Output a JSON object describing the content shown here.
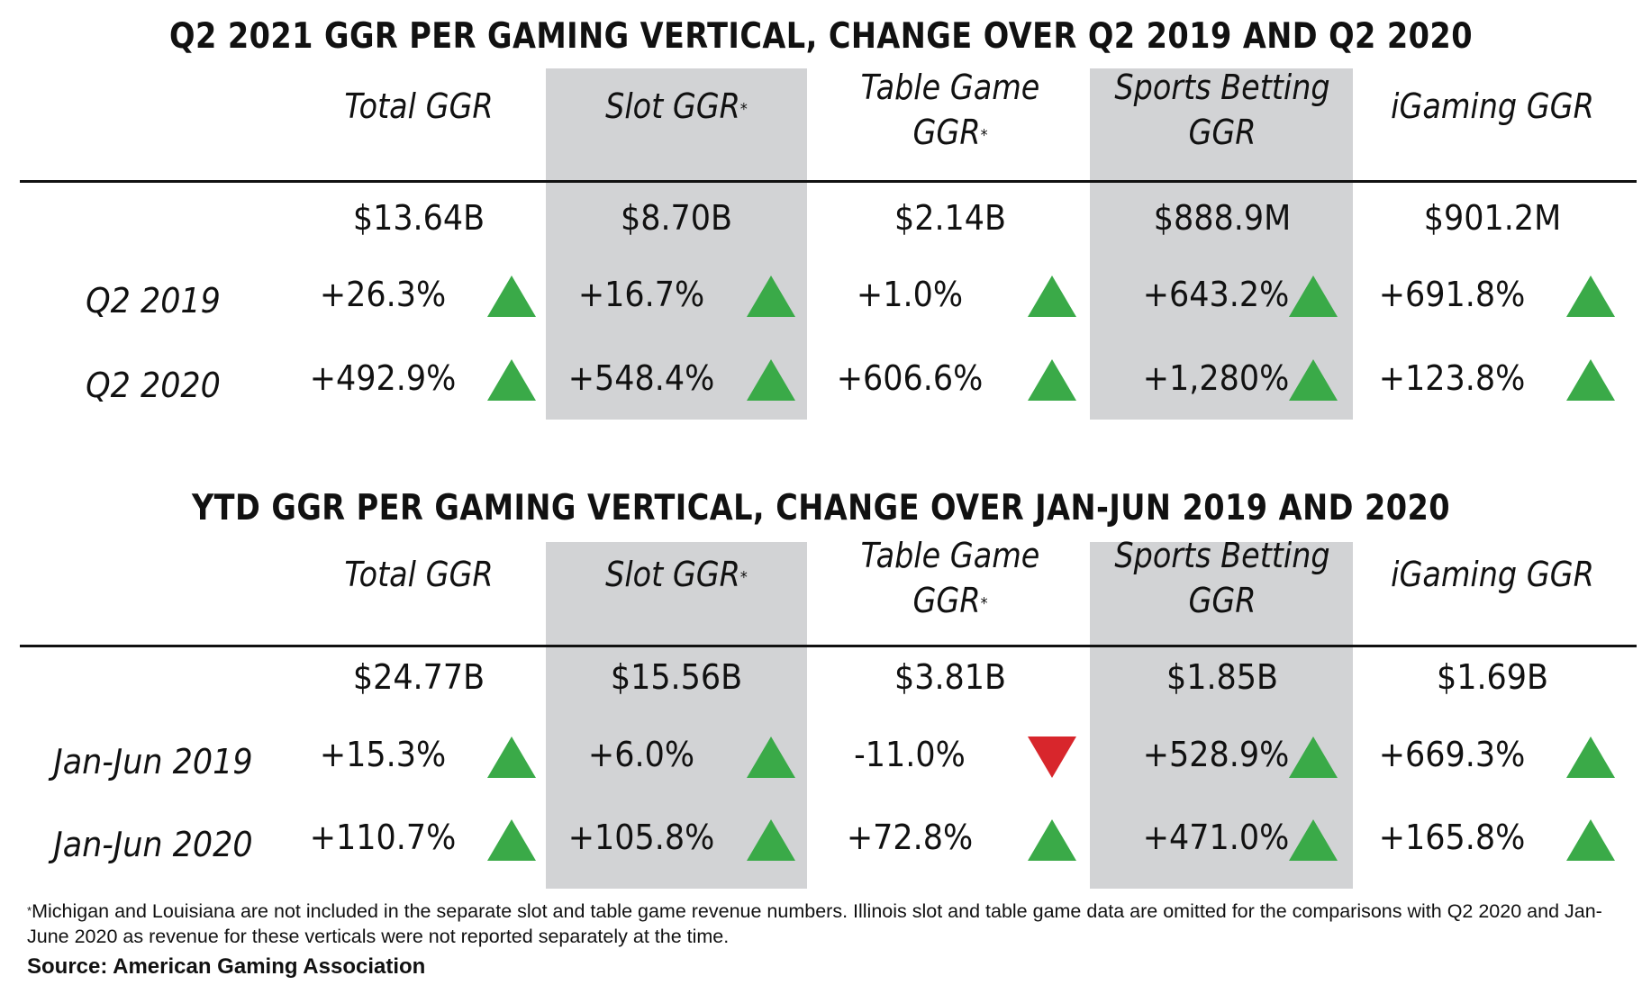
{
  "tables": [
    {
      "title": "Q2 2021 GGR PER GAMING VERTICAL, CHANGE OVER Q2 2019 AND Q2 2020",
      "columns": [
        {
          "line1": "Total GGR",
          "line2": "",
          "mark": ""
        },
        {
          "line1": "Slot GGR",
          "line2": "",
          "mark": "*"
        },
        {
          "line1": "Table Game",
          "line2": "GGR",
          "mark": "*"
        },
        {
          "line1": "Sports Betting",
          "line2": "GGR",
          "mark": ""
        },
        {
          "line1": "iGaming GGR",
          "line2": "",
          "mark": ""
        }
      ],
      "totals": [
        "$13.64B",
        "$8.70B",
        "$2.14B",
        "$888.9M",
        "$901.2M"
      ],
      "rows": [
        {
          "label": "Q2 2019",
          "values": [
            "+26.3%",
            "+16.7%",
            "+1.0%",
            "+643.2%",
            "+691.8%"
          ],
          "directions": [
            "up",
            "up",
            "up",
            "up",
            "up"
          ]
        },
        {
          "label": "Q2 2020",
          "values": [
            "+492.9%",
            "+548.4%",
            "+606.6%",
            "+1,280%",
            "+123.8%"
          ],
          "directions": [
            "up",
            "up",
            "up",
            "up",
            "up"
          ]
        }
      ]
    },
    {
      "title": "YTD GGR PER GAMING VERTICAL, CHANGE OVER JAN-JUN 2019 AND 2020",
      "columns": [
        {
          "line1": "Total GGR",
          "line2": "",
          "mark": ""
        },
        {
          "line1": "Slot GGR",
          "line2": "",
          "mark": "*"
        },
        {
          "line1": "Table Game",
          "line2": "GGR",
          "mark": "*"
        },
        {
          "line1": "Sports Betting",
          "line2": "GGR",
          "mark": ""
        },
        {
          "line1": "iGaming GGR",
          "line2": "",
          "mark": ""
        }
      ],
      "totals": [
        "$24.77B",
        "$15.56B",
        "$3.81B",
        "$1.85B",
        "$1.69B"
      ],
      "rows": [
        {
          "label": "Jan-Jun 2019",
          "values": [
            "+15.3%",
            "+6.0%",
            "-11.0%",
            "+528.9%",
            "+669.3%"
          ],
          "directions": [
            "up",
            "up",
            "down",
            "up",
            "up"
          ]
        },
        {
          "label": "Jan-Jun 2020",
          "values": [
            "+110.7%",
            "+105.8%",
            "+72.8%",
            "+471.0%",
            "+165.8%"
          ],
          "directions": [
            "up",
            "up",
            "up",
            "up",
            "up"
          ]
        }
      ]
    }
  ],
  "footnote": {
    "mark": "*",
    "text": "Michigan and Louisiana are not included in the separate slot and table game revenue numbers. Illinois slot and table game data are omitted for the comparisons with Q2 2020 and Jan-June 2020 as revenue for these verticals were not reported separately at the time."
  },
  "source": "Source: American Gaming Association",
  "colors": {
    "up": "#3aaa48",
    "down": "#d8262c",
    "shade": "#d2d3d5"
  },
  "chart_data": [
    {
      "type": "table",
      "title": "Q2 2021 GGR PER GAMING VERTICAL, CHANGE OVER Q2 2019 AND Q2 2020",
      "categories": [
        "Total GGR",
        "Slot GGR*",
        "Table Game GGR*",
        "Sports Betting GGR",
        "iGaming GGR"
      ],
      "totals": [
        "$13.64B",
        "$8.70B",
        "$2.14B",
        "$888.9M",
        "$901.2M"
      ],
      "series": [
        {
          "name": "Q2 2019",
          "values": [
            26.3,
            16.7,
            1.0,
            643.2,
            691.8
          ]
        },
        {
          "name": "Q2 2020",
          "values": [
            492.9,
            548.4,
            606.6,
            1280,
            123.8
          ]
        }
      ]
    },
    {
      "type": "table",
      "title": "YTD GGR PER GAMING VERTICAL, CHANGE OVER JAN-JUN 2019 AND 2020",
      "categories": [
        "Total GGR",
        "Slot GGR*",
        "Table Game GGR*",
        "Sports Betting GGR",
        "iGaming GGR"
      ],
      "totals": [
        "$24.77B",
        "$15.56B",
        "$3.81B",
        "$1.85B",
        "$1.69B"
      ],
      "series": [
        {
          "name": "Jan-Jun 2019",
          "values": [
            15.3,
            6.0,
            -11.0,
            528.9,
            669.3
          ]
        },
        {
          "name": "Jan-Jun 2020",
          "values": [
            110.7,
            105.8,
            72.8,
            471.0,
            165.8
          ]
        }
      ]
    }
  ]
}
